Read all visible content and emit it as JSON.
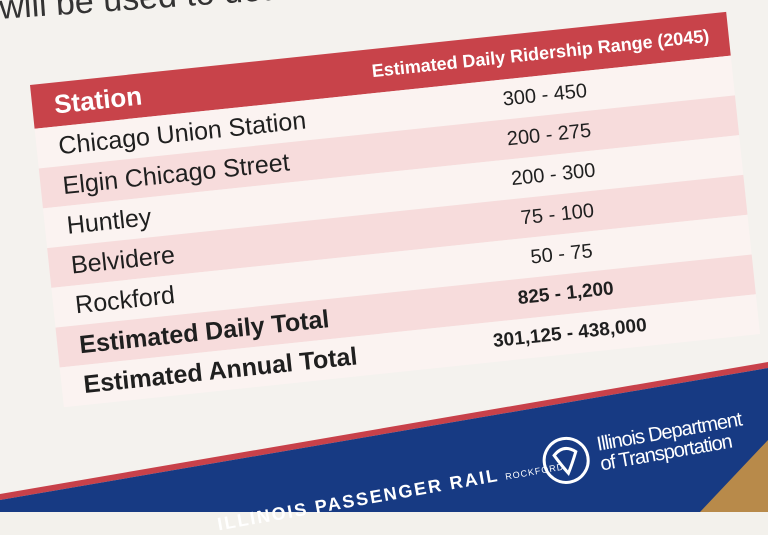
{
  "intro_text": "will be used to determine the site amenities for each proposed statio",
  "table": {
    "headers": [
      "Station",
      "Estimated Daily Ridership Range (2045)"
    ],
    "rows": [
      {
        "station": "Chicago Union Station",
        "range": "300 - 450"
      },
      {
        "station": "Elgin Chicago Street",
        "range": "200 - 275"
      },
      {
        "station": "Huntley",
        "range": "200 - 300"
      },
      {
        "station": "Belvidere",
        "range": "75 - 100"
      },
      {
        "station": "Rockford",
        "range": "50 - 75"
      }
    ],
    "totals": [
      {
        "label": "Estimated Daily Total",
        "range": "825 - 1,200"
      },
      {
        "label": "Estimated Annual Total",
        "range": "301,125 - 438,000"
      }
    ]
  },
  "footer": {
    "idot_name": "Illinois Department of Transportation",
    "idot_line1": "Illinois Department",
    "idot_line2": "of Transportation",
    "rail_logo": "ILLINOIS PASSENGER RAIL",
    "rail_sub": "ROCKFORD"
  },
  "colors": {
    "header_red": "#c8434a",
    "band_blue": "#173a83",
    "row_pink": "#f7dcdc"
  }
}
